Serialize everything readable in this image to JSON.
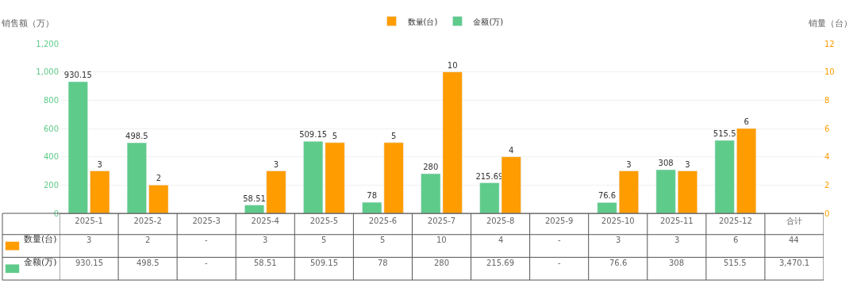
{
  "chart_data": {
    "type": "bar",
    "ylabel": "销售额（万）",
    "y2label": "销量（台）",
    "categories": [
      "2025-1",
      "2025-2",
      "2025-3",
      "2025-4",
      "2025-5",
      "2025-6",
      "2025-7",
      "2025-8",
      "2025-9",
      "2025-10",
      "2025-11",
      "2025-12",
      "合计"
    ],
    "series": [
      {
        "name": "数量(台)",
        "color": "#ff9c00",
        "axis": "y2",
        "values": [
          3,
          2,
          null,
          3,
          5,
          5,
          10,
          4,
          null,
          3,
          3,
          6,
          null
        ],
        "value_labels": [
          "3",
          "2",
          "-",
          "3",
          "5",
          "5",
          "10",
          "4",
          "-",
          "3",
          "3",
          "6",
          "44"
        ]
      },
      {
        "name": "金额(万)",
        "color": "#5ecb8a",
        "axis": "y",
        "values": [
          930.15,
          498.5,
          null,
          58.51,
          509.15,
          78,
          280,
          215.69,
          null,
          76.6,
          308,
          515.5,
          null
        ],
        "value_labels": [
          "930.15",
          "498.5",
          "-",
          "58.51",
          "509.15",
          "78",
          "280",
          "215.69",
          "-",
          "76.6",
          "308",
          "515.5",
          "3,470.1"
        ]
      }
    ],
    "ylim": [
      0,
      1200
    ],
    "yticks": [
      0,
      200,
      400,
      600,
      800,
      {
        "value": 1000,
        "label": "1,000"
      },
      {
        "value": 1200,
        "label": "1,200"
      }
    ],
    "y2lim": [
      0,
      12
    ],
    "y2ticks": [
      0,
      2,
      4,
      6,
      8,
      10,
      12
    ],
    "grid": "y",
    "legend": "top"
  }
}
